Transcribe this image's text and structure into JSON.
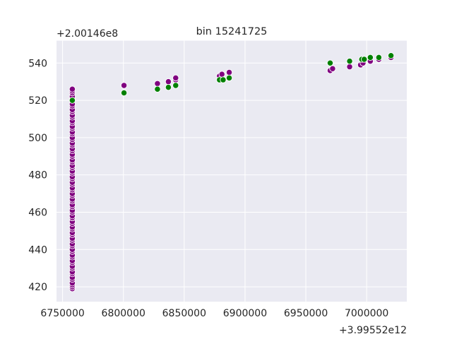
{
  "chart_data": {
    "type": "scatter",
    "title": "bin 15241725",
    "xlabel": "",
    "ylabel": "",
    "x_offset_text": "+3.99552e12",
    "y_offset_text": "+2.00146e8",
    "xlim": [
      6745000,
      7033000
    ],
    "ylim": [
      412,
      552
    ],
    "x_ticks": [
      6750000,
      6800000,
      6850000,
      6900000,
      6950000,
      7000000
    ],
    "x_tick_labels": [
      "6750000",
      "6800000",
      "6850000",
      "6900000",
      "6950000",
      "7000000"
    ],
    "y_ticks": [
      420,
      440,
      460,
      480,
      500,
      520,
      540
    ],
    "y_tick_labels": [
      "420",
      "440",
      "460",
      "480",
      "500",
      "520",
      "540"
    ],
    "grid": true,
    "background": "#eaeaf2",
    "grid_color": "#ffffff",
    "series": [
      {
        "color": "#800080",
        "points": [
          [
            6758000,
            419
          ],
          [
            6758000,
            420
          ],
          [
            6758000,
            421
          ],
          [
            6758000,
            422
          ],
          [
            6758000,
            424
          ],
          [
            6758000,
            425
          ],
          [
            6758000,
            427
          ],
          [
            6758000,
            428
          ],
          [
            6758000,
            430
          ],
          [
            6758000,
            431
          ],
          [
            6758000,
            433
          ],
          [
            6758000,
            434
          ],
          [
            6758000,
            436
          ],
          [
            6758000,
            437
          ],
          [
            6758000,
            439
          ],
          [
            6758000,
            440
          ],
          [
            6758000,
            442
          ],
          [
            6758000,
            443
          ],
          [
            6758000,
            445
          ],
          [
            6758000,
            446
          ],
          [
            6758000,
            448
          ],
          [
            6758000,
            449
          ],
          [
            6758000,
            451
          ],
          [
            6758000,
            452
          ],
          [
            6758000,
            454
          ],
          [
            6758000,
            455
          ],
          [
            6758000,
            457
          ],
          [
            6758000,
            458
          ],
          [
            6758000,
            460
          ],
          [
            6758000,
            461
          ],
          [
            6758000,
            463
          ],
          [
            6758000,
            464
          ],
          [
            6758000,
            466
          ],
          [
            6758000,
            467
          ],
          [
            6758000,
            469
          ],
          [
            6758000,
            470
          ],
          [
            6758000,
            472
          ],
          [
            6758000,
            473
          ],
          [
            6758000,
            475
          ],
          [
            6758000,
            476
          ],
          [
            6758000,
            478
          ],
          [
            6758000,
            479
          ],
          [
            6758000,
            481
          ],
          [
            6758000,
            482
          ],
          [
            6758000,
            484
          ],
          [
            6758000,
            485
          ],
          [
            6758000,
            487
          ],
          [
            6758000,
            488
          ],
          [
            6758000,
            490
          ],
          [
            6758000,
            491
          ],
          [
            6758000,
            493
          ],
          [
            6758000,
            494
          ],
          [
            6758000,
            496
          ],
          [
            6758000,
            497
          ],
          [
            6758000,
            499
          ],
          [
            6758000,
            500
          ],
          [
            6758000,
            502
          ],
          [
            6758000,
            503
          ],
          [
            6758000,
            505
          ],
          [
            6758000,
            506
          ],
          [
            6758000,
            508
          ],
          [
            6758000,
            509
          ],
          [
            6758000,
            511
          ],
          [
            6758000,
            512
          ],
          [
            6758000,
            514
          ],
          [
            6758000,
            515
          ],
          [
            6758000,
            517
          ],
          [
            6758000,
            518
          ],
          [
            6758000,
            521
          ],
          [
            6758000,
            522
          ],
          [
            6758000,
            524
          ],
          [
            6758000,
            525
          ],
          [
            6758000,
            526
          ],
          [
            6800500,
            528
          ],
          [
            6828000,
            529
          ],
          [
            6837000,
            530
          ],
          [
            6843000,
            531
          ],
          [
            6843000,
            532
          ],
          [
            6879000,
            533
          ],
          [
            6881000,
            534
          ],
          [
            6887000,
            535
          ],
          [
            6970000,
            536
          ],
          [
            6972000,
            537
          ],
          [
            6986000,
            538
          ],
          [
            6995000,
            539
          ],
          [
            6997000,
            540
          ],
          [
            7003000,
            541
          ],
          [
            7010000,
            542
          ],
          [
            7020000,
            543
          ]
        ]
      },
      {
        "color": "#008000",
        "points": [
          [
            6758000,
            520
          ],
          [
            6800500,
            524
          ],
          [
            6828000,
            526
          ],
          [
            6837000,
            527
          ],
          [
            6843000,
            528
          ],
          [
            6879000,
            531
          ],
          [
            6882000,
            531
          ],
          [
            6887000,
            532
          ],
          [
            6970000,
            540
          ],
          [
            6986000,
            541
          ],
          [
            6996000,
            542
          ],
          [
            6998000,
            542
          ],
          [
            7003000,
            543
          ],
          [
            7010000,
            543
          ],
          [
            7020000,
            544
          ]
        ]
      }
    ]
  }
}
